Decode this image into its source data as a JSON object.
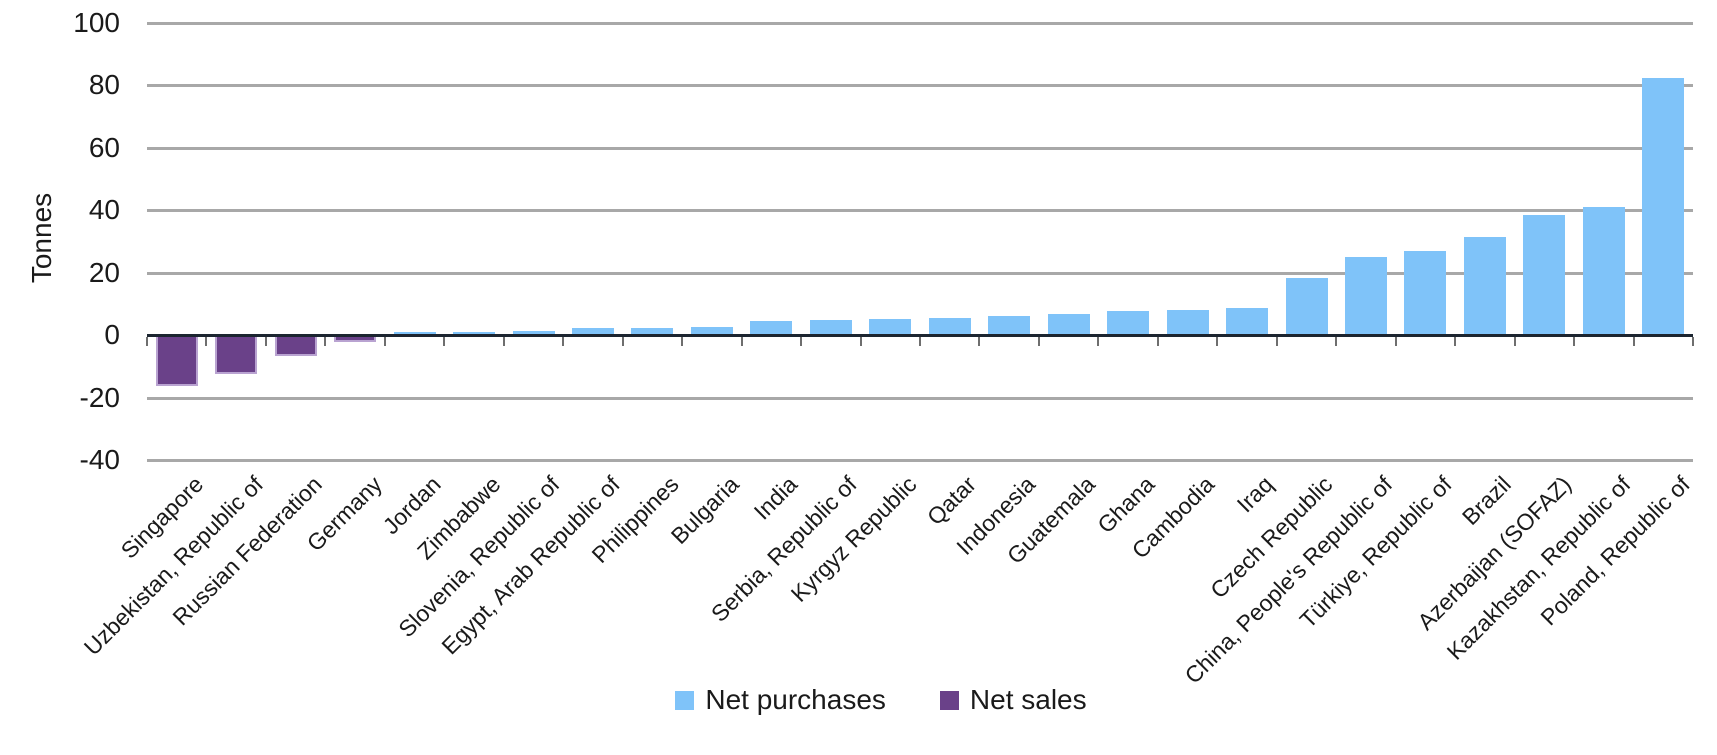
{
  "y_axis": {
    "title": "Tonnes",
    "tick_labels": [
      "100",
      "80",
      "60",
      "40",
      "20",
      "0",
      "-20",
      "-40"
    ]
  },
  "legend": {
    "net_purchases_label": "Net purchases",
    "net_sales_label": "Net sales"
  },
  "colors": {
    "net_purchases": "#7FC3F9",
    "net_sales": "#6A4189",
    "net_sales_border": "#B9A3D1",
    "gridline": "#A8A8A8",
    "axis_line": "#1C2530",
    "tick": "#6E6E6E",
    "text": "#1A1A1A"
  },
  "chart_data": {
    "type": "bar",
    "title": "",
    "xlabel": "",
    "ylabel": "Tonnes",
    "ylim": [
      -40,
      100
    ],
    "yticks": [
      100,
      80,
      60,
      40,
      20,
      0,
      -20,
      -40
    ],
    "grid": true,
    "legend_position": "bottom",
    "legend_entries": [
      {
        "label": "Net purchases",
        "color": "#7FC3F9"
      },
      {
        "label": "Net sales",
        "color": "#6A4189"
      }
    ],
    "categories": [
      "Singapore",
      "Uzbekistan, Republic of",
      "Russian Federation",
      "Germany",
      "Jordan",
      "Zimbabwe",
      "Slovenia, Republic of",
      "Egypt, Arab Republic of",
      "Philippines",
      "Bulgaria",
      "India",
      "Serbia, Republic of",
      "Kyrgyz Republic",
      "Qatar",
      "Indonesia",
      "Guatemala",
      "Ghana",
      "Cambodia",
      "Iraq",
      "Czech Republic",
      "China, People's Republic of",
      "Türkiye, Republic of",
      "Brazil",
      "Azerbaijan (SOFAZ)",
      "Kazakhstan, Republic of",
      "Poland, Republic of"
    ],
    "values": [
      -15.9,
      -12.1,
      -6.5,
      -2.0,
      1.0,
      1.1,
      1.4,
      2.1,
      2.3,
      2.5,
      4.4,
      4.7,
      5.0,
      5.6,
      6.2,
      6.8,
      7.7,
      8.1,
      8.5,
      18.2,
      25.0,
      27.0,
      31.5,
      38.5,
      41.0,
      82.2
    ],
    "point_series": [
      "Net sales",
      "Net sales",
      "Net sales",
      "Net sales",
      "Net purchases",
      "Net purchases",
      "Net purchases",
      "Net purchases",
      "Net purchases",
      "Net purchases",
      "Net purchases",
      "Net purchases",
      "Net purchases",
      "Net purchases",
      "Net purchases",
      "Net purchases",
      "Net purchases",
      "Net purchases",
      "Net purchases",
      "Net purchases",
      "Net purchases",
      "Net purchases",
      "Net purchases",
      "Net purchases",
      "Net purchases",
      "Net purchases"
    ]
  }
}
